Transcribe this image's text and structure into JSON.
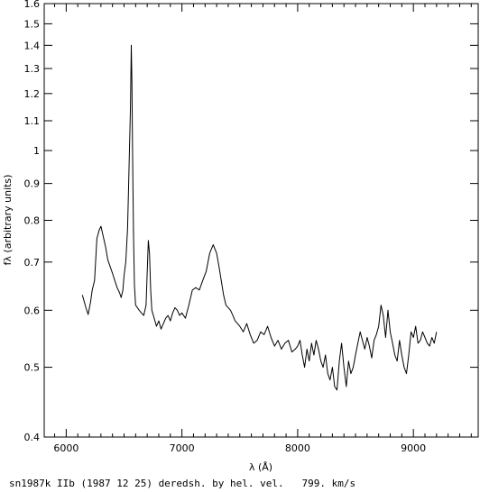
{
  "chart_data": {
    "type": "line",
    "title": "",
    "xlabel": "λ (Å)",
    "ylabel": "fλ (arbitrary units)",
    "yscale": "log",
    "xlim": [
      5810,
      9560
    ],
    "ylim": [
      0.4,
      1.6
    ],
    "xticks": [
      6000,
      7000,
      8000,
      9000
    ],
    "xtick_labels": [
      "6000",
      "7000",
      "8000",
      "9000"
    ],
    "yticks": [
      0.4,
      0.5,
      0.6,
      0.7,
      0.8,
      0.9,
      1.0,
      1.1,
      1.2,
      1.3,
      1.4,
      1.5,
      1.6
    ],
    "ytick_labels": [
      "0.4",
      "0.5",
      "0.6",
      "0.7",
      "0.8",
      "0.9",
      "1",
      "1.1",
      "1.2",
      "1.3",
      "1.4",
      "1.5",
      "1.6"
    ],
    "grid": false,
    "legend": "none",
    "line_color": "#000000",
    "series": [
      {
        "x": [
          6140,
          6170,
          6190,
          6210,
          6225,
          6245,
          6265,
          6285,
          6300,
          6320,
          6340,
          6360,
          6380,
          6400,
          6420,
          6440,
          6460,
          6475,
          6490,
          6500,
          6515,
          6530,
          6540,
          6555,
          6562,
          6568,
          6575,
          6582,
          6590,
          6600,
          6615,
          6630,
          6650,
          6670,
          6690,
          6700,
          6710,
          6720,
          6730,
          6740,
          6760,
          6780,
          6800,
          6820,
          6840,
          6860,
          6880,
          6900,
          6920,
          6940,
          6960,
          6980,
          7000,
          7030,
          7060,
          7090,
          7120,
          7150,
          7180,
          7210,
          7240,
          7270,
          7300,
          7320,
          7340,
          7360,
          7380,
          7400,
          7420,
          7440,
          7460,
          7480,
          7500,
          7530,
          7560,
          7590,
          7620,
          7650,
          7680,
          7710,
          7740,
          7770,
          7800,
          7830,
          7860,
          7890,
          7920,
          7950,
          7980,
          8000,
          8020,
          8040,
          8060,
          8080,
          8100,
          8120,
          8140,
          8160,
          8180,
          8200,
          8220,
          8240,
          8260,
          8280,
          8300,
          8320,
          8340,
          8360,
          8380,
          8400,
          8420,
          8440,
          8460,
          8480,
          8500,
          8520,
          8540,
          8560,
          8580,
          8600,
          8620,
          8640,
          8660,
          8680,
          8700,
          8720,
          8740,
          8760,
          8780,
          8800,
          8820,
          8840,
          8860,
          8880,
          8900,
          8920,
          8940,
          8960,
          8980,
          9000,
          9020,
          9040,
          9060,
          9080,
          9100,
          9120,
          9140,
          9160,
          9180,
          9200
        ],
        "y": [
          0.63,
          0.605,
          0.592,
          0.615,
          0.64,
          0.66,
          0.755,
          0.775,
          0.785,
          0.76,
          0.735,
          0.705,
          0.69,
          0.675,
          0.66,
          0.645,
          0.635,
          0.625,
          0.64,
          0.67,
          0.7,
          0.78,
          0.9,
          1.15,
          1.4,
          1.25,
          0.95,
          0.76,
          0.65,
          0.61,
          0.605,
          0.6,
          0.595,
          0.59,
          0.61,
          0.68,
          0.75,
          0.72,
          0.64,
          0.6,
          0.585,
          0.57,
          0.58,
          0.565,
          0.575,
          0.585,
          0.59,
          0.58,
          0.595,
          0.605,
          0.6,
          0.59,
          0.595,
          0.585,
          0.61,
          0.64,
          0.645,
          0.64,
          0.66,
          0.68,
          0.72,
          0.74,
          0.72,
          0.69,
          0.66,
          0.63,
          0.61,
          0.605,
          0.6,
          0.59,
          0.58,
          0.575,
          0.57,
          0.56,
          0.575,
          0.555,
          0.54,
          0.545,
          0.56,
          0.555,
          0.57,
          0.55,
          0.535,
          0.545,
          0.53,
          0.54,
          0.545,
          0.525,
          0.53,
          0.535,
          0.545,
          0.52,
          0.5,
          0.53,
          0.51,
          0.54,
          0.52,
          0.545,
          0.53,
          0.51,
          0.5,
          0.52,
          0.49,
          0.48,
          0.5,
          0.47,
          0.465,
          0.51,
          0.54,
          0.5,
          0.47,
          0.51,
          0.49,
          0.5,
          0.52,
          0.54,
          0.56,
          0.545,
          0.53,
          0.55,
          0.535,
          0.515,
          0.545,
          0.555,
          0.57,
          0.61,
          0.59,
          0.55,
          0.6,
          0.56,
          0.54,
          0.52,
          0.51,
          0.545,
          0.52,
          0.5,
          0.49,
          0.52,
          0.56,
          0.55,
          0.57,
          0.54,
          0.545,
          0.56,
          0.55,
          0.54,
          0.535,
          0.55,
          0.54,
          0.56
        ]
      }
    ]
  },
  "caption": "sn1987k IIb (1987 12 25) deredsh. by hel. vel.   799. km/s"
}
